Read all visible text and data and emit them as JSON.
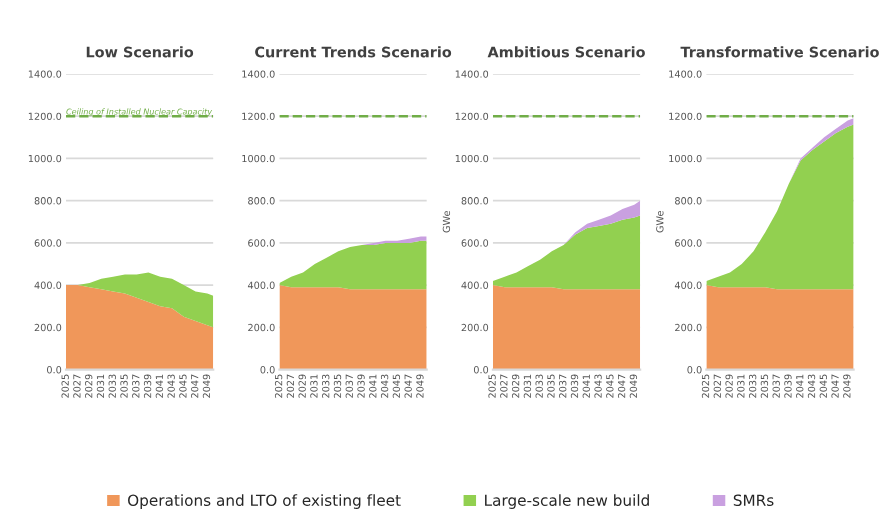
{
  "chart_data": [
    {
      "type": "area",
      "stacked": true,
      "title": "Low Scenario",
      "x": [
        2025,
        2027,
        2029,
        2031,
        2033,
        2035,
        2037,
        2039,
        2041,
        2043,
        2045,
        2047,
        2049,
        2050
      ],
      "xlim": [
        2025,
        2050
      ],
      "xticks": [
        2025,
        2027,
        2029,
        2031,
        2033,
        2035,
        2037,
        2039,
        2041,
        2043,
        2045,
        2047,
        2049
      ],
      "ylim": [
        0,
        1400
      ],
      "yticks": [
        {
          "value": 0,
          "label": "0.0"
        },
        {
          "value": 200,
          "label": "200.0"
        },
        {
          "value": 400,
          "label": "400.0"
        },
        {
          "value": 600,
          "label": "600.0"
        },
        {
          "value": 800,
          "label": "800.0"
        },
        {
          "value": 1000,
          "label": "1000.0"
        },
        {
          "value": 1200,
          "label": "1200.0"
        },
        {
          "value": 1400,
          "label": "1400.0"
        }
      ],
      "grid": "y",
      "ref_lines": [
        {
          "axis": "y",
          "value": 1200,
          "label": "Ceiling of Installed Nuclear Capacity",
          "color": "#70ad47",
          "line_style": "dashed"
        }
      ],
      "series": [
        {
          "color": "#f0975a",
          "values": [
            400,
            400,
            390,
            380,
            370,
            360,
            340,
            320,
            300,
            290,
            250,
            230,
            210,
            200
          ]
        },
        {
          "color": "#92d050",
          "values": [
            0,
            0,
            20,
            50,
            70,
            90,
            110,
            140,
            140,
            140,
            150,
            140,
            150,
            150
          ]
        }
      ]
    },
    {
      "type": "area",
      "stacked": true,
      "title": "Current Trends Scenario",
      "x": [
        2025,
        2027,
        2029,
        2031,
        2033,
        2035,
        2037,
        2039,
        2041,
        2043,
        2045,
        2047,
        2049,
        2050
      ],
      "xlim": [
        2025,
        2050
      ],
      "xticks": [
        2025,
        2027,
        2029,
        2031,
        2033,
        2035,
        2037,
        2039,
        2041,
        2043,
        2045,
        2047,
        2049
      ],
      "ylim": [
        0,
        1400
      ],
      "yticks": [
        {
          "value": 0,
          "label": "0.0"
        },
        {
          "value": 200,
          "label": "200.0"
        },
        {
          "value": 400,
          "label": "400.0"
        },
        {
          "value": 600,
          "label": "600.0"
        },
        {
          "value": 800,
          "label": "800.0"
        },
        {
          "value": 1000,
          "label": "1000.0"
        },
        {
          "value": 1200,
          "label": "1200.0"
        },
        {
          "value": 1400,
          "label": "1400.0"
        }
      ],
      "grid": "y",
      "ref_lines": [
        {
          "axis": "y",
          "value": 1200,
          "color": "#70ad47",
          "line_style": "dashed"
        }
      ],
      "series": [
        {
          "color": "#f0975a",
          "values": [
            400,
            390,
            390,
            390,
            390,
            390,
            380,
            380,
            380,
            380,
            380,
            380,
            380,
            380
          ]
        },
        {
          "color": "#92d050",
          "values": [
            10,
            50,
            70,
            110,
            140,
            170,
            200,
            210,
            210,
            220,
            220,
            220,
            230,
            230
          ]
        },
        {
          "color": "#c9a0e0",
          "values": [
            0,
            0,
            0,
            0,
            0,
            0,
            0,
            0,
            10,
            10,
            10,
            20,
            20,
            20
          ]
        }
      ]
    },
    {
      "type": "area",
      "stacked": true,
      "title": "Ambitious Scenario",
      "ylabel": "GWe",
      "x": [
        2025,
        2027,
        2029,
        2031,
        2033,
        2035,
        2037,
        2039,
        2041,
        2043,
        2045,
        2047,
        2049,
        2050
      ],
      "xlim": [
        2025,
        2050
      ],
      "xticks": [
        2025,
        2027,
        2029,
        2031,
        2033,
        2035,
        2037,
        2039,
        2041,
        2043,
        2045,
        2047,
        2049
      ],
      "ylim": [
        0,
        1400
      ],
      "yticks": [
        {
          "value": 0,
          "label": "0.0"
        },
        {
          "value": 200,
          "label": "200.0"
        },
        {
          "value": 400,
          "label": "400.0"
        },
        {
          "value": 600,
          "label": "600.0"
        },
        {
          "value": 800,
          "label": "800.0"
        },
        {
          "value": 1000,
          "label": "1000.0"
        },
        {
          "value": 1200,
          "label": "1200.0"
        },
        {
          "value": 1400,
          "label": "1400.0"
        }
      ],
      "grid": "y",
      "ref_lines": [
        {
          "axis": "y",
          "value": 1200,
          "color": "#70ad47",
          "line_style": "dashed"
        }
      ],
      "series": [
        {
          "color": "#f0975a",
          "values": [
            400,
            390,
            390,
            390,
            390,
            390,
            380,
            380,
            380,
            380,
            380,
            380,
            380,
            380
          ]
        },
        {
          "color": "#92d050",
          "values": [
            20,
            50,
            70,
            100,
            130,
            170,
            210,
            260,
            290,
            300,
            310,
            330,
            340,
            350
          ]
        },
        {
          "color": "#c9a0e0",
          "values": [
            0,
            0,
            0,
            0,
            0,
            0,
            0,
            10,
            20,
            30,
            40,
            50,
            60,
            70
          ]
        }
      ]
    },
    {
      "type": "area",
      "stacked": true,
      "title": "Transformative Scenario",
      "ylabel": "GWe",
      "legend": "bottom",
      "x": [
        2025,
        2027,
        2029,
        2031,
        2033,
        2035,
        2037,
        2039,
        2041,
        2043,
        2045,
        2047,
        2049,
        2050
      ],
      "xlim": [
        2025,
        2050
      ],
      "xticks": [
        2025,
        2027,
        2029,
        2031,
        2033,
        2035,
        2037,
        2039,
        2041,
        2043,
        2045,
        2047,
        2049
      ],
      "ylim": [
        0,
        1400
      ],
      "yticks": [
        {
          "value": 0,
          "label": "0.0"
        },
        {
          "value": 200,
          "label": "200.0"
        },
        {
          "value": 400,
          "label": "400.0"
        },
        {
          "value": 600,
          "label": "600.0"
        },
        {
          "value": 800,
          "label": "800.0"
        },
        {
          "value": 1000,
          "label": "1000.0"
        },
        {
          "value": 1200,
          "label": "1200.0"
        },
        {
          "value": 1400,
          "label": "1400.0"
        }
      ],
      "grid": "y",
      "ref_lines": [
        {
          "axis": "y",
          "value": 1200,
          "color": "#70ad47",
          "line_style": "dashed"
        }
      ],
      "series": [
        {
          "name": "Operations and LTO of existing fleet",
          "color": "#f0975a",
          "values": [
            400,
            390,
            390,
            390,
            390,
            390,
            380,
            380,
            380,
            380,
            380,
            380,
            380,
            380
          ]
        },
        {
          "name": "Large-scale new build",
          "color": "#92d050",
          "values": [
            20,
            50,
            70,
            110,
            170,
            260,
            370,
            500,
            610,
            660,
            700,
            740,
            770,
            780
          ]
        },
        {
          "name": "SMRs",
          "color": "#c9a0e0",
          "values": [
            0,
            0,
            0,
            0,
            0,
            0,
            0,
            0,
            10,
            10,
            20,
            20,
            30,
            30
          ]
        }
      ]
    }
  ]
}
